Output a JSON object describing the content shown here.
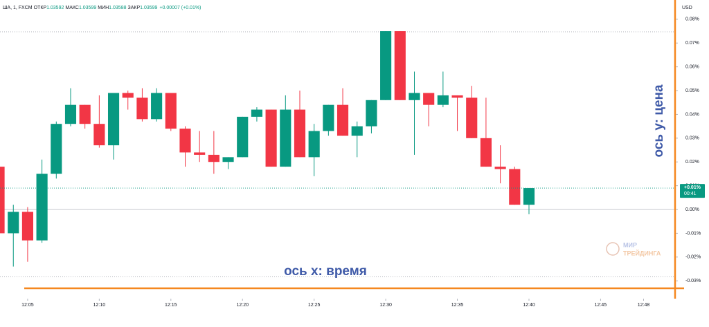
{
  "header": {
    "symbol": "ША, 1, FXCM",
    "fields": [
      {
        "label": "ОТКР",
        "value": "1.03592"
      },
      {
        "label": "МАКС",
        "value": "1.03599"
      },
      {
        "label": "МИН",
        "value": "1.03588"
      },
      {
        "label": "ЗАКР",
        "value": "1.03599"
      }
    ],
    "change": "+0.00007 (+0.01%)"
  },
  "chart_data": {
    "type": "candlestick",
    "y_unit": "USD",
    "x": [
      3,
      4,
      5,
      6,
      7,
      8,
      9,
      10,
      11,
      12,
      13,
      14,
      15,
      16,
      17,
      18,
      19,
      20,
      21,
      22,
      23,
      24,
      25,
      26,
      27,
      28,
      29,
      30,
      31,
      32,
      33,
      34,
      35,
      36,
      37,
      38,
      39,
      40
    ],
    "open": [
      0.018,
      -0.01,
      -0.001,
      -0.013,
      0.015,
      0.036,
      0.044,
      0.036,
      0.027,
      0.049,
      0.047,
      0.038,
      0.049,
      0.034,
      0.024,
      0.023,
      0.02,
      0.022,
      0.039,
      0.042,
      0.018,
      0.042,
      0.022,
      0.033,
      0.044,
      0.031,
      0.035,
      0.046,
      0.075,
      0.046,
      0.049,
      0.044,
      0.048,
      0.047,
      0.03,
      0.018,
      0.017,
      0.002
    ],
    "high": [
      0.018,
      0.002,
      0.001,
      0.021,
      0.037,
      0.051,
      0.044,
      0.048,
      0.049,
      0.05,
      0.051,
      0.051,
      0.049,
      0.035,
      0.033,
      0.033,
      0.022,
      0.039,
      0.043,
      0.042,
      0.048,
      0.05,
      0.036,
      0.044,
      0.051,
      0.037,
      0.046,
      0.075,
      0.075,
      0.058,
      0.049,
      0.058,
      0.048,
      0.052,
      0.047,
      0.027,
      0.018,
      0.009
    ],
    "low": [
      -0.01,
      -0.024,
      -0.022,
      -0.014,
      0.013,
      0.035,
      0.034,
      0.026,
      0.021,
      0.042,
      0.037,
      0.037,
      0.033,
      0.018,
      0.02,
      0.015,
      0.017,
      0.022,
      0.037,
      0.018,
      0.018,
      0.022,
      0.014,
      0.031,
      0.031,
      0.022,
      0.032,
      0.046,
      0.046,
      0.023,
      0.035,
      0.043,
      0.033,
      0.03,
      0.018,
      0.011,
      0.002,
      -0.002
    ],
    "close": [
      -0.01,
      -0.001,
      -0.013,
      0.015,
      0.036,
      0.044,
      0.036,
      0.027,
      0.049,
      0.047,
      0.038,
      0.049,
      0.034,
      0.024,
      0.023,
      0.02,
      0.022,
      0.039,
      0.042,
      0.018,
      0.042,
      0.022,
      0.033,
      0.044,
      0.031,
      0.035,
      0.046,
      0.075,
      0.046,
      0.049,
      0.044,
      0.048,
      0.047,
      0.03,
      0.018,
      0.017,
      0.002,
      0.009
    ],
    "up_color": "#089981",
    "down_color": "#f23645",
    "xlim": [
      3.07,
      50.2
    ],
    "xticks": [
      {
        "value": 5,
        "label": "12:05"
      },
      {
        "value": 10,
        "label": "12:10"
      },
      {
        "value": 15,
        "label": "12:15"
      },
      {
        "value": 20,
        "label": "12:20"
      },
      {
        "value": 25,
        "label": "12:25"
      },
      {
        "value": 30,
        "label": "12:30"
      },
      {
        "value": 35,
        "label": "12:35"
      },
      {
        "value": 40,
        "label": "12:40"
      },
      {
        "value": 45,
        "label": "12:45"
      },
      {
        "value": 48,
        "label": "12:48"
      }
    ],
    "ylim": [
      -0.0375,
      0.0881
    ],
    "yticks": [
      {
        "value": 0.08,
        "label": "0.08%"
      },
      {
        "value": 0.07,
        "label": "0.07%"
      },
      {
        "value": 0.06,
        "label": "0.06%"
      },
      {
        "value": 0.05,
        "label": "0.05%"
      },
      {
        "value": 0.04,
        "label": "0.04%"
      },
      {
        "value": 0.03,
        "label": "0.03%"
      },
      {
        "value": 0.02,
        "label": "0.02%"
      },
      {
        "value": 0.01,
        "label": "0.01%"
      },
      {
        "value": 0,
        "label": "0.00%"
      },
      {
        "value": -0.01,
        "label": "-0.01%"
      },
      {
        "value": -0.02,
        "label": "-0.02%"
      },
      {
        "value": -0.03,
        "label": "-0.03%"
      }
    ],
    "last_price_label": "+0.01%",
    "countdown": "00:41",
    "annotations": {
      "x_axis": "ось х: время",
      "y_axis": "ось у: цена",
      "watermark_top": "МИР",
      "watermark_bottom": "ТРЕЙДИНГА"
    }
  }
}
